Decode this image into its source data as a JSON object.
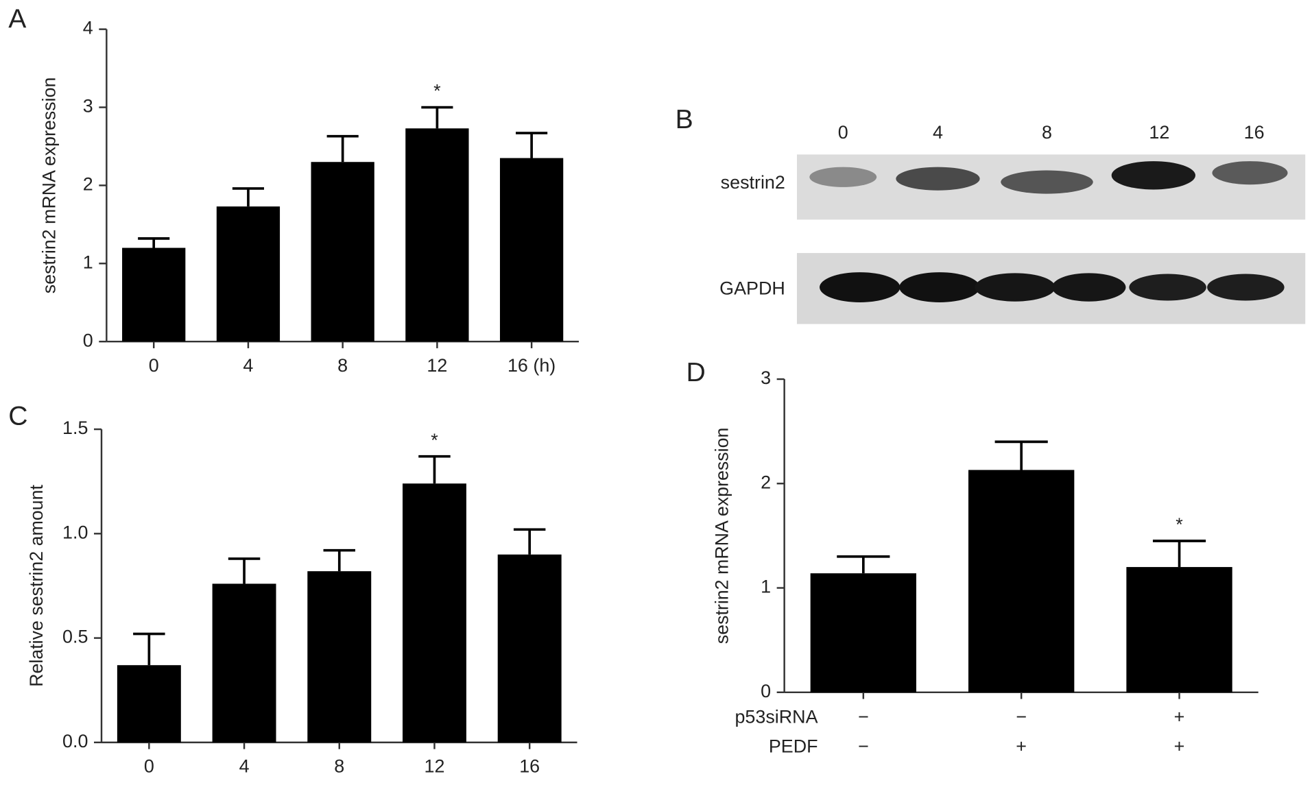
{
  "chart_data": [
    {
      "type": "bar",
      "panel": "A",
      "ylabel": "sestrin2 mRNA expression",
      "categories": [
        "0",
        "4",
        "8",
        "12",
        "16 (h)"
      ],
      "values": [
        1.2,
        1.73,
        2.3,
        2.73,
        2.35
      ],
      "errors": [
        0.12,
        0.23,
        0.33,
        0.27,
        0.32
      ],
      "significance": [
        null,
        null,
        null,
        "*",
        null
      ],
      "color": "#000000",
      "ylim": [
        0,
        4
      ],
      "yticks": [
        0,
        1,
        2,
        3,
        4
      ]
    },
    {
      "type": "bar",
      "panel": "C",
      "ylabel": "Relative sestrin2 amount",
      "categories": [
        "0",
        "4",
        "8",
        "12",
        "16"
      ],
      "values": [
        0.37,
        0.76,
        0.82,
        1.24,
        0.9
      ],
      "errors": [
        0.15,
        0.12,
        0.1,
        0.13,
        0.12
      ],
      "significance": [
        null,
        null,
        null,
        "*",
        null
      ],
      "color": "#000000",
      "ylim": [
        0,
        1.5
      ],
      "yticks": [
        {
          "value": 0,
          "label": "0.0"
        },
        {
          "value": 0.5,
          "label": "0.5"
        },
        {
          "value": 1,
          "label": "1.0"
        },
        {
          "value": 1.5,
          "label": "1.5"
        }
      ]
    },
    {
      "type": "bar",
      "panel": "D",
      "ylabel": "sestrin2 mRNA expression",
      "categories": [
        null,
        null,
        null
      ],
      "conditions": [
        {
          "name": "p53siRNA",
          "values": [
            "−",
            "−",
            "+"
          ]
        },
        {
          "name": "PEDF",
          "values": [
            "−",
            "+",
            "+"
          ]
        }
      ],
      "values": [
        1.14,
        2.13,
        1.2
      ],
      "errors": [
        0.16,
        0.27,
        0.25
      ],
      "significance": [
        null,
        null,
        "*"
      ],
      "color": "#000000",
      "ylim": [
        0,
        3
      ],
      "yticks": [
        0,
        1,
        2,
        3
      ]
    }
  ],
  "blot": {
    "panel": "B",
    "lanes": [
      "0",
      "4",
      "8",
      "12",
      "16"
    ],
    "rows": [
      "sestrin2",
      "GAPDH"
    ]
  }
}
